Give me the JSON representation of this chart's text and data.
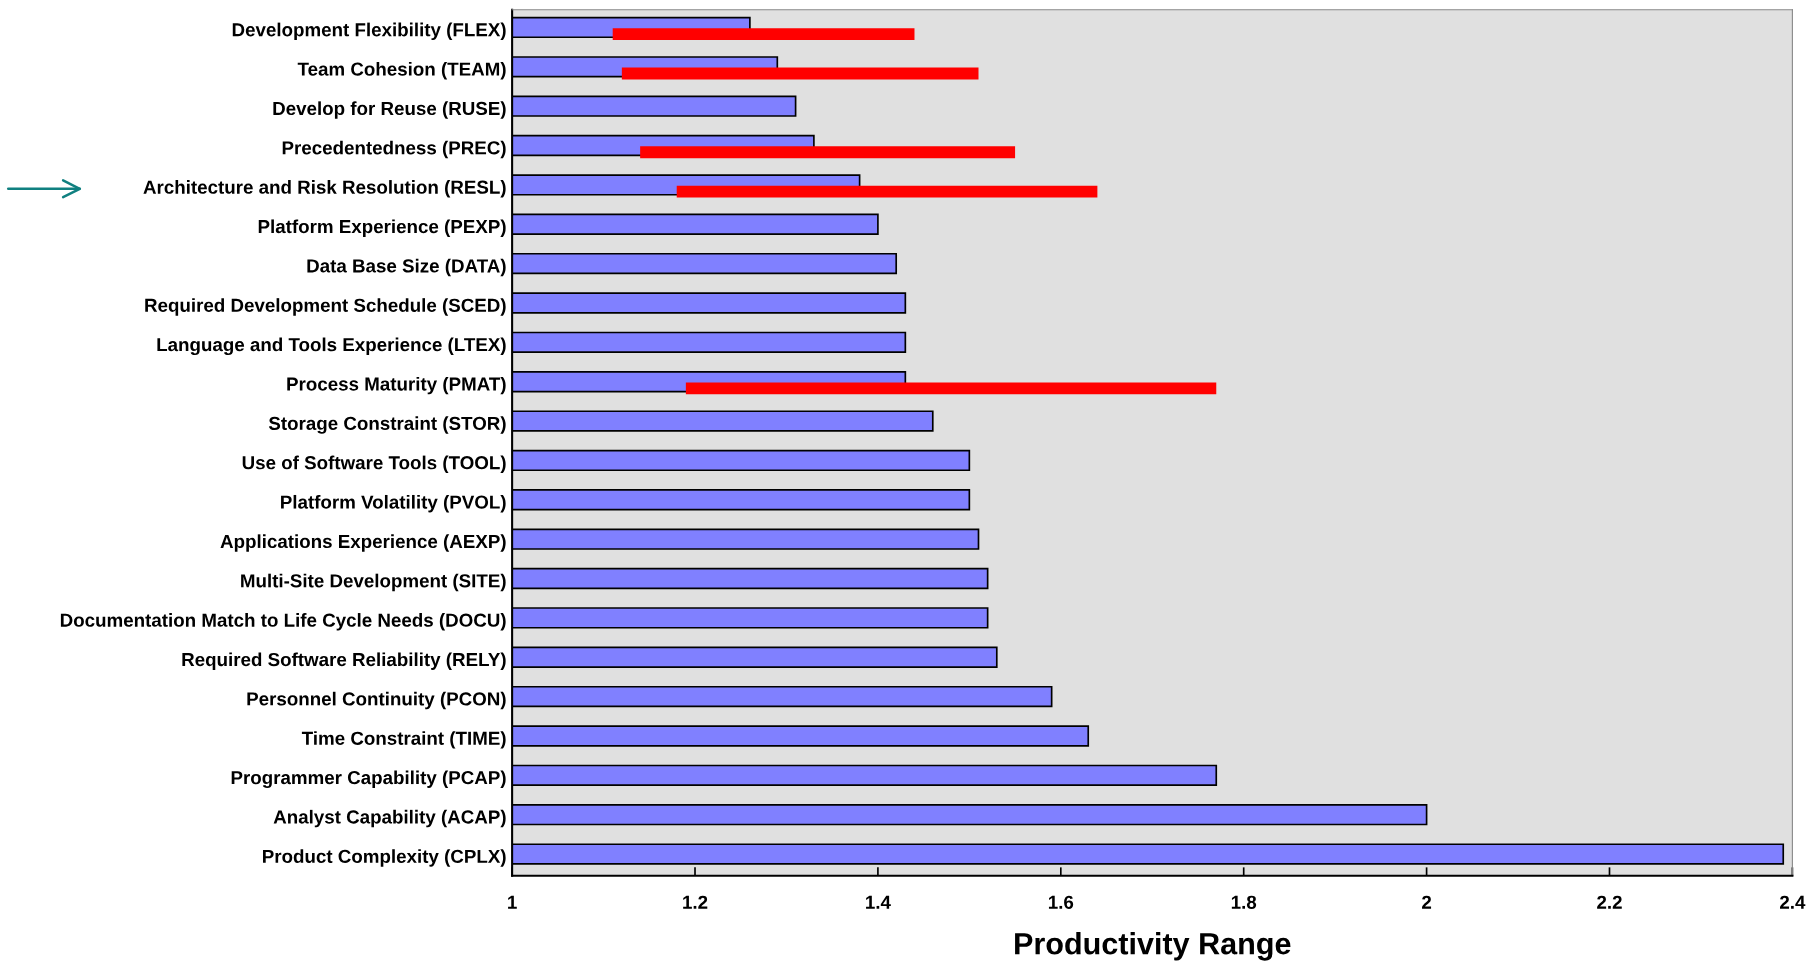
{
  "chart_data": {
    "type": "bar",
    "orientation": "horizontal",
    "xlabel": "Productivity Range",
    "categories": [
      "Development Flexibility (FLEX)",
      "Team Cohesion (TEAM)",
      "Develop for Reuse (RUSE)",
      "Precedentedness (PREC)",
      "Architecture and Risk Resolution (RESL)",
      "Platform Experience (PEXP)",
      "Data Base Size (DATA)",
      "Required Development Schedule (SCED)",
      "Language and Tools Experience (LTEX)",
      "Process Maturity (PMAT)",
      "Storage Constraint (STOR)",
      "Use of Software Tools (TOOL)",
      "Platform Volatility (PVOL)",
      "Applications Experience (AEXP)",
      "Multi-Site Development (SITE)",
      "Documentation Match to Life Cycle Needs (DOCU)",
      "Required Software Reliability (RELY)",
      "Personnel Continuity (PCON)",
      "Time Constraint (TIME)",
      "Programmer Capability (PCAP)",
      "Analyst Capability (ACAP)",
      "Product Complexity (CPLX)"
    ],
    "series": [
      {
        "color": "#8080ff",
        "values": [
          1.26,
          1.29,
          1.31,
          1.33,
          1.38,
          1.4,
          1.42,
          1.43,
          1.43,
          1.43,
          1.46,
          1.5,
          1.5,
          1.51,
          1.52,
          1.52,
          1.53,
          1.59,
          1.63,
          1.77,
          2.0,
          2.39
        ]
      },
      {
        "color": "#ff0000",
        "base": [
          1.11,
          1.12,
          null,
          1.14,
          1.18,
          null,
          null,
          null,
          null,
          1.19,
          null,
          null,
          null,
          null,
          null,
          null,
          null,
          null,
          null,
          null,
          null,
          null
        ],
        "values": [
          0.33,
          0.39,
          null,
          0.41,
          0.46,
          null,
          null,
          null,
          null,
          0.58,
          null,
          null,
          null,
          null,
          null,
          null,
          null,
          null,
          null,
          null,
          null,
          null
        ]
      }
    ],
    "xlim": [
      1,
      2.4
    ],
    "xticks": [
      1,
      1.2,
      1.4,
      1.6,
      1.8,
      2,
      2.2,
      2.4
    ],
    "grid": false,
    "legend": false
  }
}
